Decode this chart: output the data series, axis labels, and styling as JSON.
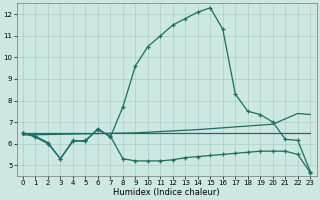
{
  "xlabel": "Humidex (Indice chaleur)",
  "xlim": [
    -0.5,
    23.5
  ],
  "ylim": [
    4.5,
    12.5
  ],
  "xticks": [
    0,
    1,
    2,
    3,
    4,
    5,
    6,
    7,
    8,
    9,
    10,
    11,
    12,
    13,
    14,
    15,
    16,
    17,
    18,
    19,
    20,
    21,
    22,
    23
  ],
  "yticks": [
    5,
    6,
    7,
    8,
    9,
    10,
    11,
    12
  ],
  "bg_color": "#cce8e0",
  "grid_color": "#aacfc8",
  "line_color": "#1a6e64",
  "series_main": {
    "x": [
      0,
      1,
      2,
      3,
      4,
      5,
      6,
      7,
      8,
      9,
      10,
      11,
      12,
      13,
      14,
      15,
      16,
      17,
      18,
      19,
      20,
      21,
      22,
      23
    ],
    "y": [
      6.5,
      6.3,
      6.0,
      5.3,
      6.15,
      6.1,
      6.7,
      6.3,
      7.7,
      9.6,
      10.5,
      11.0,
      11.5,
      11.8,
      12.1,
      12.3,
      11.3,
      8.3,
      7.5,
      7.35,
      7.0,
      6.2,
      6.15,
      4.7
    ]
  },
  "series_zigzag": {
    "x": [
      0,
      1,
      2,
      3,
      4,
      5,
      6,
      7,
      8,
      9,
      10,
      11,
      12,
      13,
      14,
      15,
      16,
      17,
      18,
      19,
      20,
      21,
      22,
      23
    ],
    "y": [
      6.5,
      6.35,
      6.05,
      5.3,
      6.1,
      6.15,
      6.65,
      6.35,
      5.3,
      5.2,
      5.2,
      5.2,
      5.25,
      5.35,
      5.4,
      5.45,
      5.5,
      5.55,
      5.6,
      5.65,
      5.65,
      5.65,
      5.5,
      4.65
    ]
  },
  "series_trend_flat": {
    "x": [
      0,
      9,
      14,
      22,
      23
    ],
    "y": [
      6.5,
      6.5,
      6.5,
      6.5,
      6.5
    ]
  },
  "series_trend_rise": {
    "x": [
      0,
      9,
      14,
      20,
      22,
      23
    ],
    "y": [
      6.4,
      6.5,
      6.65,
      6.9,
      7.4,
      7.35
    ]
  }
}
